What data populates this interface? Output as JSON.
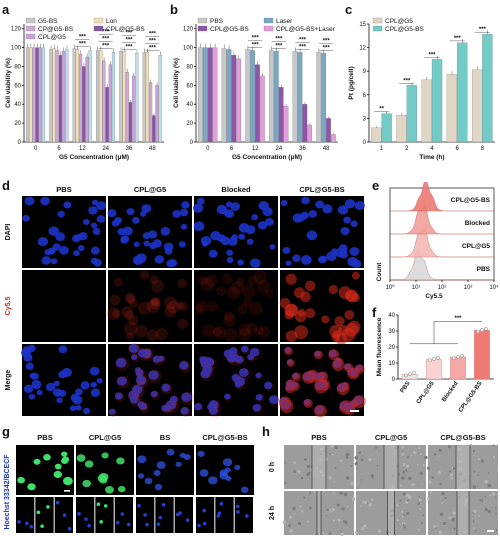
{
  "panels": {
    "a": "a",
    "b": "b",
    "c": "c",
    "d": "d",
    "e": "e",
    "f": "f",
    "g": "g",
    "h": "h"
  },
  "chart_data": [
    {
      "id": "a",
      "type": "bar",
      "xlabel": "G5 Concentration (μM)",
      "ylabel": "Cell viability (%)",
      "categories": [
        "0",
        "6",
        "12",
        "24",
        "36",
        "48"
      ],
      "ylim": [
        0,
        125
      ],
      "yticks": [
        0,
        20,
        40,
        60,
        80,
        100,
        120
      ],
      "legend_cols": 2,
      "colors": [
        "#c8c8c8",
        "#f1dfb6",
        "#cfa8d8",
        "#8557a2",
        "#c9a3d9",
        "#b9e0ea"
      ],
      "series": [
        {
          "name": "G5-BS",
          "values": [
            100,
            98,
            99,
            97,
            96,
            95
          ]
        },
        {
          "name": "Lon",
          "values": [
            100,
            99,
            98,
            97,
            96,
            95
          ]
        },
        {
          "name": "CP@G5-BS",
          "values": [
            100,
            97,
            93,
            86,
            74,
            63
          ]
        },
        {
          "name": "CPL@G5-BS",
          "values": [
            100,
            92,
            80,
            58,
            42,
            28
          ]
        },
        {
          "name": "CPL@G5",
          "values": [
            100,
            96,
            90,
            82,
            70,
            60
          ]
        },
        {
          "name": "",
          "values": [
            100,
            98,
            97,
            95,
            94,
            92
          ]
        }
      ],
      "stars": [
        {
          "cat": 2,
          "label": "***"
        },
        {
          "cat": 2,
          "label": "***"
        },
        {
          "cat": 3,
          "label": "***"
        },
        {
          "cat": 3,
          "label": "***"
        },
        {
          "cat": 3,
          "label": "***"
        },
        {
          "cat": 4,
          "label": "***"
        },
        {
          "cat": 4,
          "label": "***"
        },
        {
          "cat": 4,
          "label": "***"
        },
        {
          "cat": 5,
          "label": "***"
        },
        {
          "cat": 5,
          "label": "***"
        },
        {
          "cat": 5,
          "label": "***"
        }
      ]
    },
    {
      "id": "b",
      "type": "bar",
      "xlabel": "G5 Concentration (μM)",
      "ylabel": "Cell viability (%)",
      "categories": [
        "0",
        "6",
        "12",
        "24",
        "36",
        "48"
      ],
      "ylim": [
        0,
        125
      ],
      "yticks": [
        0,
        20,
        40,
        60,
        80,
        100,
        120
      ],
      "legend_cols": 2,
      "colors": [
        "#c8c8c8",
        "#7aa8c4",
        "#8b57a6",
        "#e29ed8"
      ],
      "series": [
        {
          "name": "PBS",
          "values": [
            100,
            99,
            98,
            97,
            96,
            95
          ]
        },
        {
          "name": "Laser",
          "values": [
            100,
            98,
            97,
            96,
            95,
            94
          ]
        },
        {
          "name": "CPL@G5-BS",
          "values": [
            100,
            92,
            82,
            58,
            40,
            25
          ]
        },
        {
          "name": "CPL@G5-BS+Laser",
          "values": [
            100,
            88,
            70,
            38,
            18,
            8
          ]
        }
      ],
      "stars": [
        {
          "cat": 2,
          "label": "***"
        },
        {
          "cat": 2,
          "label": "***"
        },
        {
          "cat": 3,
          "label": "***"
        },
        {
          "cat": 3,
          "label": "***"
        },
        {
          "cat": 4,
          "label": "***"
        },
        {
          "cat": 4,
          "label": "***"
        },
        {
          "cat": 5,
          "label": "***"
        },
        {
          "cat": 5,
          "label": "***"
        }
      ]
    },
    {
      "id": "c",
      "type": "bar",
      "xlabel": "Time (h)",
      "ylabel": "Pt (pg/cell)",
      "categories": [
        "1",
        "2",
        "4",
        "6",
        "8"
      ],
      "ylim": [
        0,
        15
      ],
      "yticks": [
        0,
        3,
        6,
        9,
        12,
        15
      ],
      "legend_cols": 1,
      "colors": [
        "#dfd6c5",
        "#72cbc7"
      ],
      "series": [
        {
          "name": "CPL@G5",
          "values": [
            1.8,
            3.4,
            7.9,
            8.6,
            9.2
          ]
        },
        {
          "name": "CPL@G5-BS",
          "values": [
            3.6,
            7.2,
            10.5,
            12.6,
            13.7
          ]
        }
      ],
      "stars": [
        {
          "cat": 0,
          "label": "**"
        },
        {
          "cat": 1,
          "label": "***"
        },
        {
          "cat": 2,
          "label": "***"
        },
        {
          "cat": 3,
          "label": "***"
        },
        {
          "cat": 4,
          "label": "***"
        }
      ]
    },
    {
      "id": "e",
      "type": "area",
      "xlabel": "Cy5.5",
      "ylabel": "Count",
      "xticks": [
        "10⁰",
        "10¹",
        "10²",
        "10³",
        "10⁴"
      ],
      "series": [
        {
          "name": "PBS",
          "peak": 0.9
        },
        {
          "name": "CPL@G5",
          "peak": 1.2
        },
        {
          "name": "Blocked",
          "peak": 1.2
        },
        {
          "name": "CPL@G5-BS",
          "peak": 1.5
        }
      ],
      "colors": [
        "#d9d9d9",
        "#f4b9b4",
        "#f19e97",
        "#ec7b72"
      ]
    },
    {
      "id": "f",
      "type": "bar",
      "ylabel": "Mean fluorescence",
      "categories": [
        "PBS",
        "CPL@G5",
        "Blocked",
        "CPL@G5-BS"
      ],
      "ylim": [
        0,
        40
      ],
      "yticks": [
        0,
        10,
        20,
        30,
        40
      ],
      "colors": [
        "#e8e8e8",
        "#f9d3d2",
        "#f3a9a6",
        "#ee7a74"
      ],
      "values": [
        3,
        12.5,
        13.8,
        30.5
      ],
      "stars": [
        {
          "label": "***"
        }
      ]
    }
  ],
  "panel_d": {
    "columns": [
      "PBS",
      "CPL@G5",
      "Blocked",
      "CPL@G5-BS"
    ],
    "rows": [
      "DAPI",
      "Cy5.5",
      "Merge"
    ]
  },
  "panel_g": {
    "columns": [
      "PBS",
      "CPL@G5",
      "BS",
      "CPL@G5-BS"
    ],
    "row_label": "Hoechst 33342/BCECF"
  },
  "panel_h": {
    "columns": [
      "PBS",
      "CPL@G5",
      "CPL@G5-BS"
    ],
    "rows": [
      "0 h",
      "24 h"
    ]
  }
}
